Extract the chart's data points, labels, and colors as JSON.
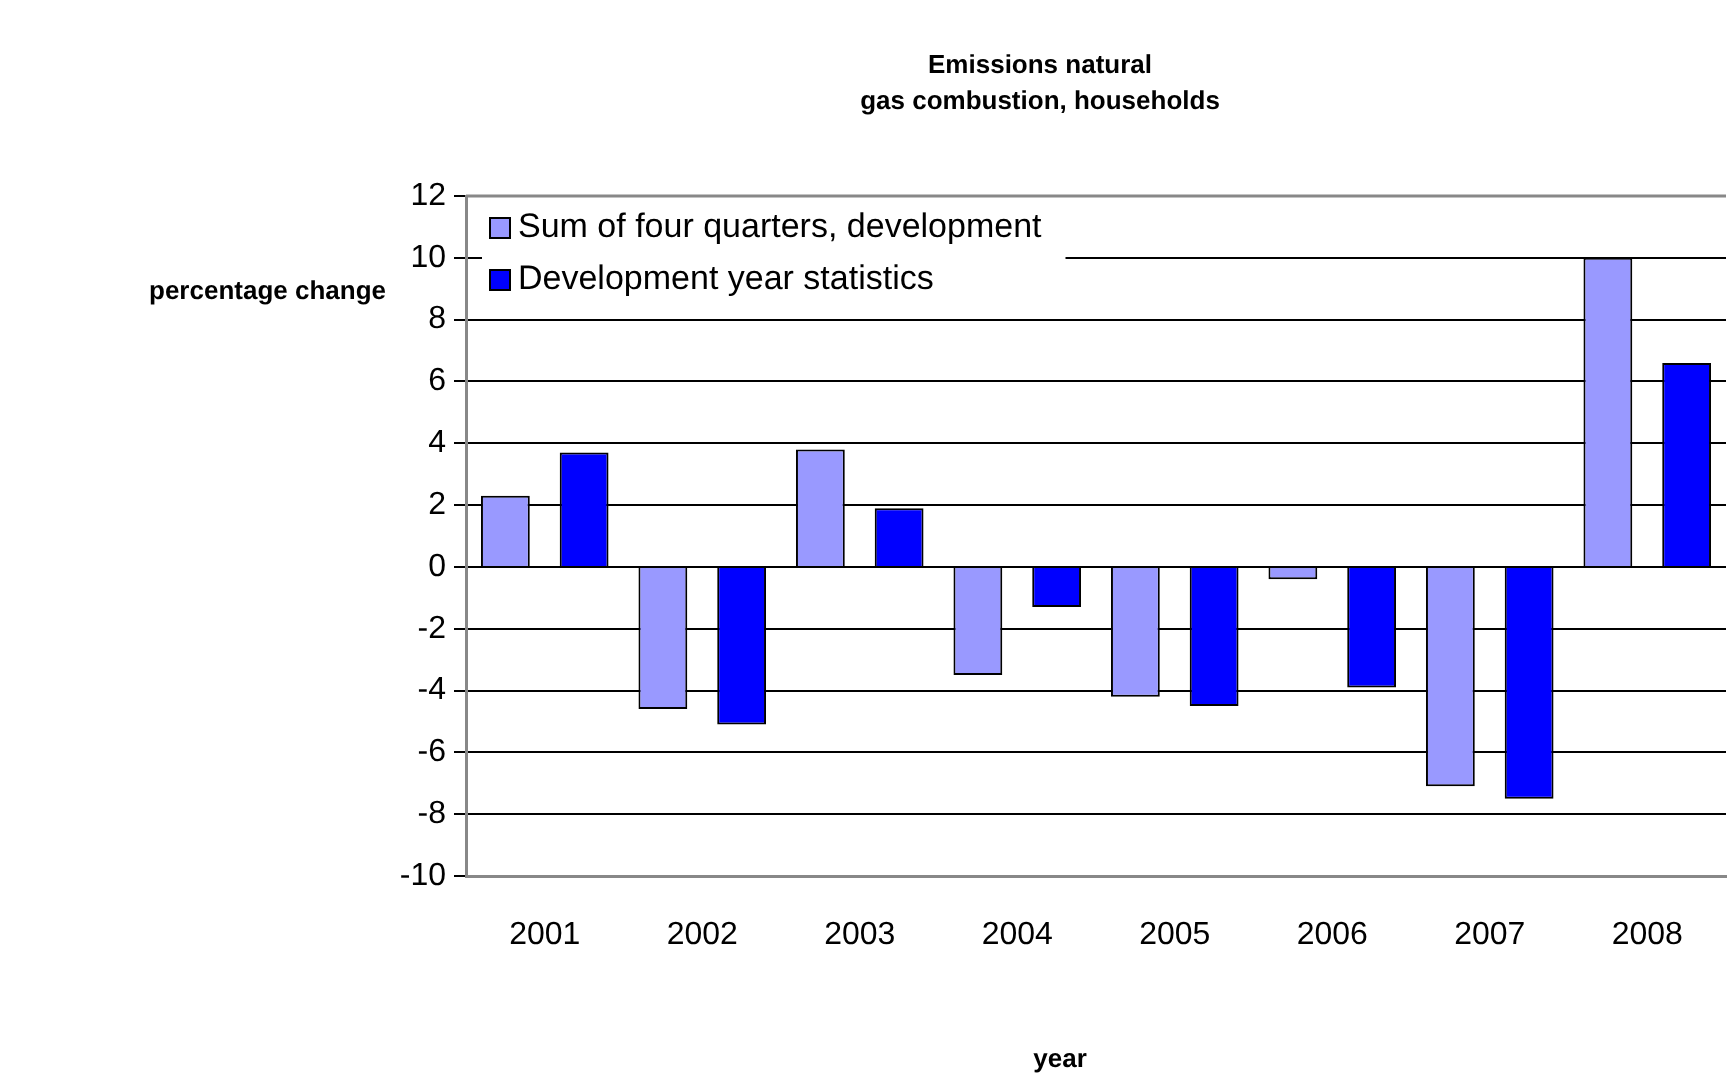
{
  "chart_data": {
    "type": "bar",
    "title": "Emissions natural\ngas combustion, households",
    "xlabel": "year",
    "ylabel": "percentage change",
    "categories": [
      "2001",
      "2002",
      "2003",
      "2004",
      "2005",
      "2006",
      "2007",
      "2008"
    ],
    "series": [
      {
        "name": "Sum of four quarters, development",
        "color": "#9999ff",
        "values": [
          2.3,
          -4.6,
          3.8,
          -3.5,
          -4.2,
          -0.4,
          -7.1,
          10.0
        ]
      },
      {
        "name": "Development year statistics",
        "color": "#0000ff",
        "values": [
          3.7,
          -5.1,
          1.9,
          -1.3,
          -4.5,
          -3.9,
          -7.5,
          6.6
        ]
      }
    ],
    "ylim": [
      -10,
      12
    ],
    "yticks": [
      -10,
      -8,
      -6,
      -4,
      -2,
      0,
      2,
      4,
      6,
      8,
      10,
      12
    ],
    "grid": "y",
    "legend": "top left"
  }
}
